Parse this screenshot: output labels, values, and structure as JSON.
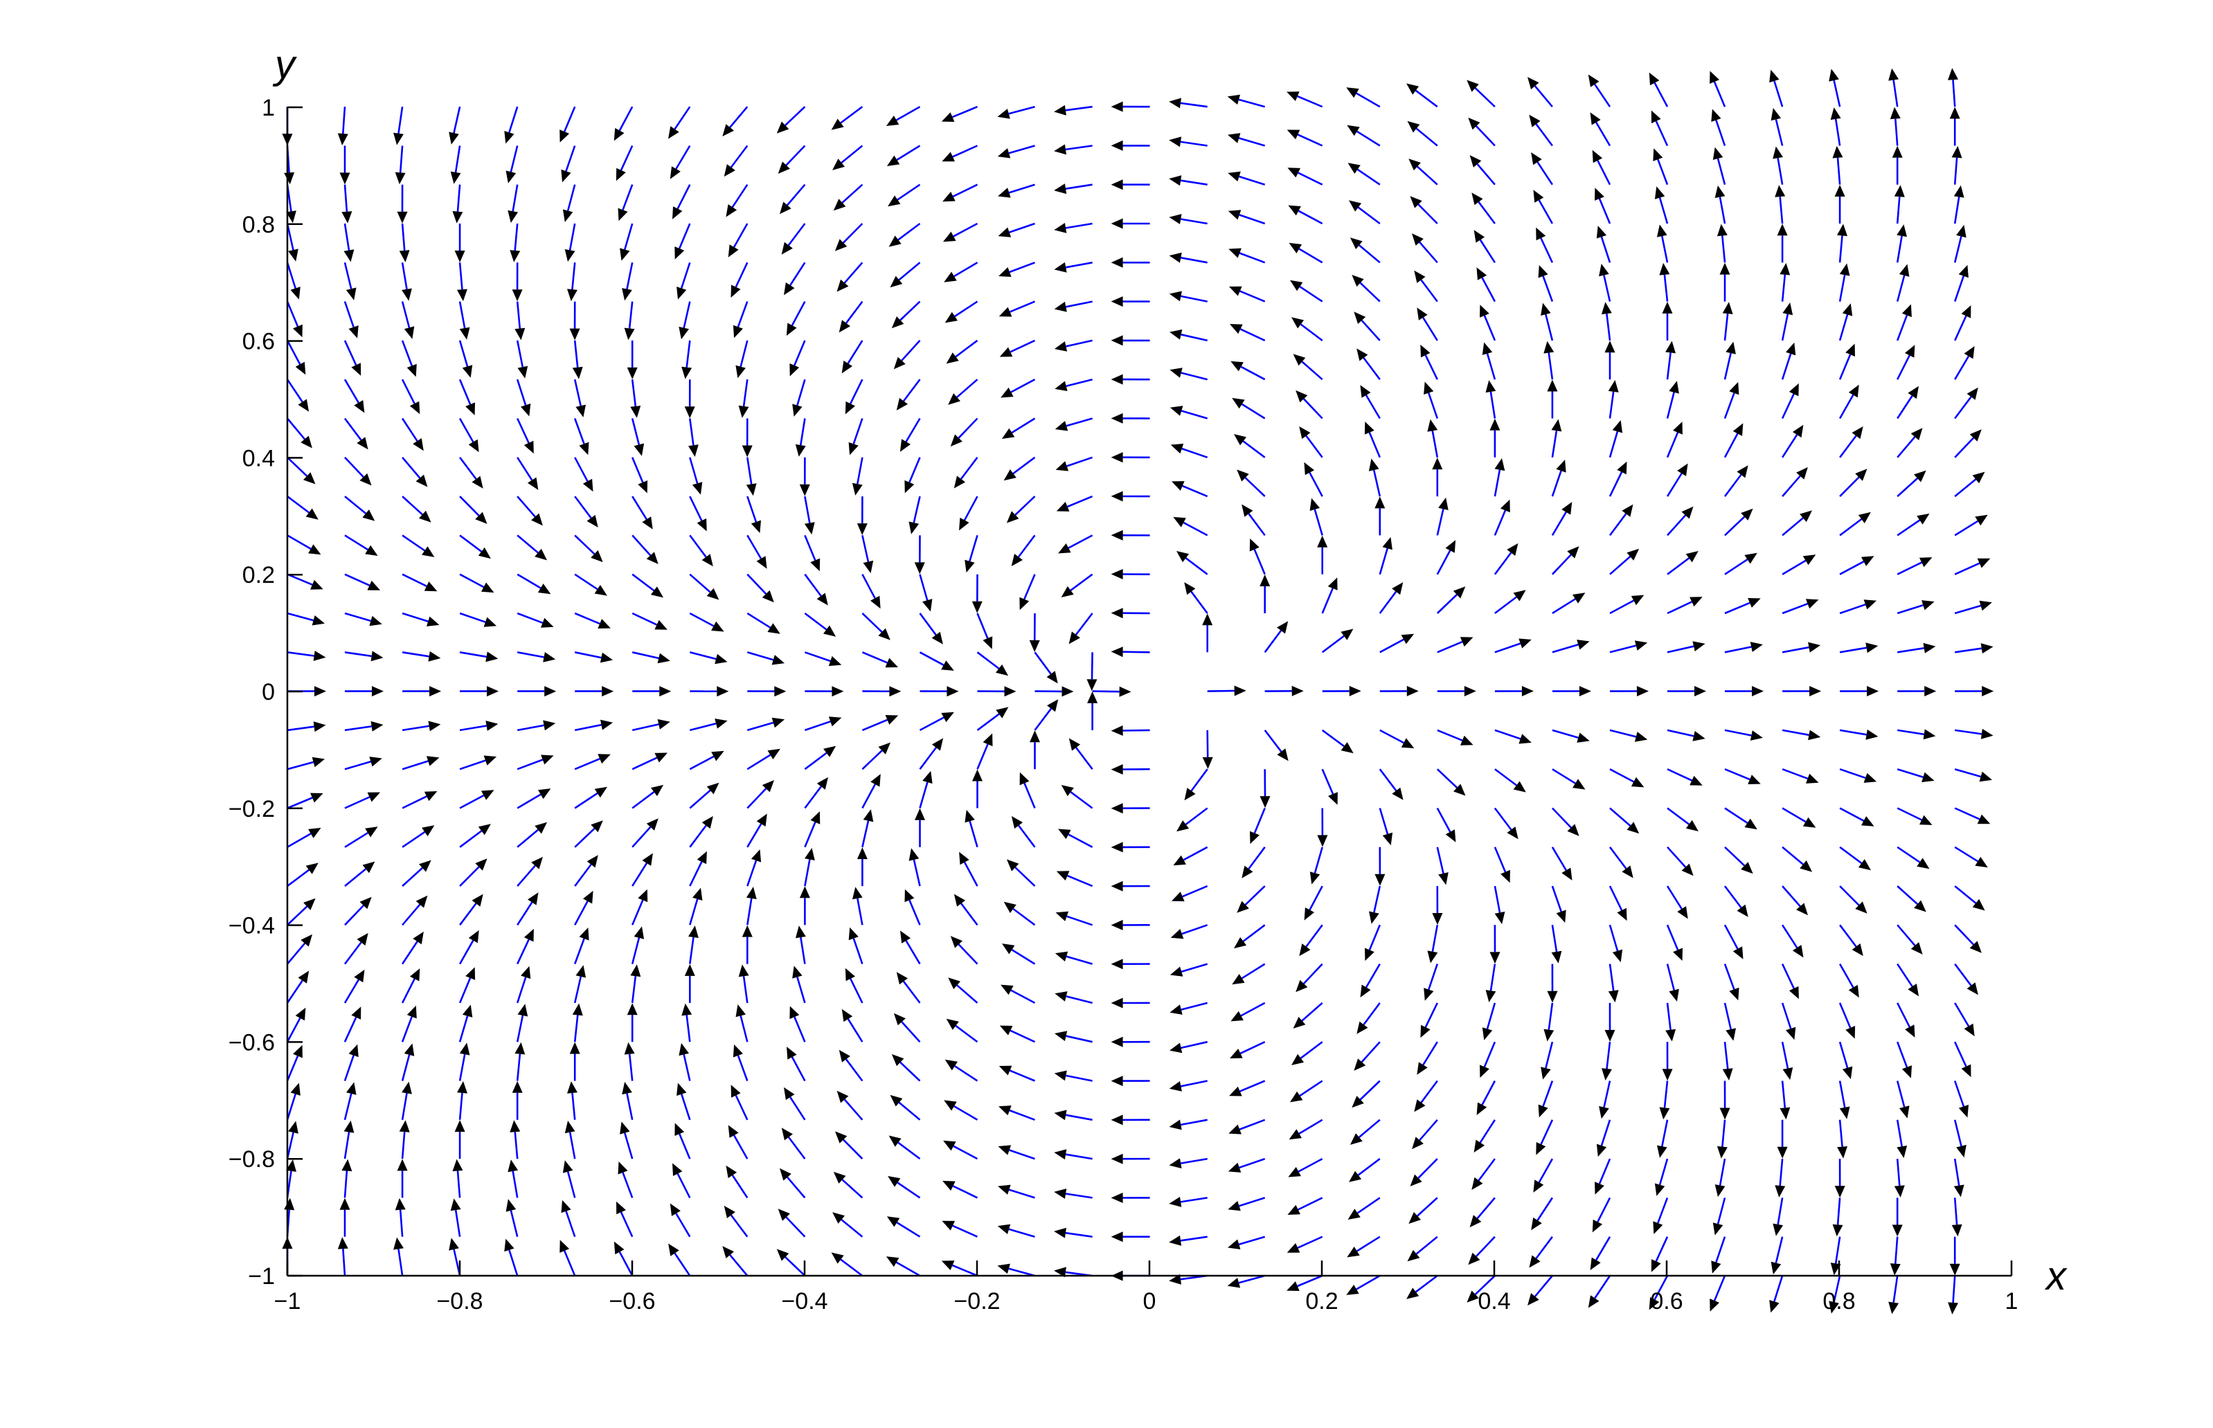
{
  "chart_data": {
    "type": "quiver",
    "title": "",
    "xlabel": "x",
    "ylabel": "y",
    "xlim": [
      -1,
      1
    ],
    "ylim": [
      -1,
      1
    ],
    "x_ticks": [
      -1,
      -0.8,
      -0.6,
      -0.4,
      -0.2,
      0,
      0.2,
      0.4,
      0.6,
      0.8,
      1
    ],
    "y_ticks": [
      -1,
      -0.8,
      -0.6,
      -0.4,
      -0.2,
      0,
      0.2,
      0.4,
      0.6,
      0.8,
      1
    ],
    "x_tick_labels": [
      "−1",
      "−0.8",
      "−0.6",
      "−0.4",
      "−0.2",
      "0",
      "0.2",
      "0.4",
      "0.6",
      "0.8",
      "1"
    ],
    "y_tick_labels": [
      "−1",
      "−0.8",
      "−0.6",
      "−0.4",
      "−0.2",
      "0",
      "0.2",
      "0.4",
      "0.6",
      "0.8",
      "1"
    ],
    "grid": false,
    "legend": "none",
    "grid_points": {
      "x_start": -1.0,
      "x_step": 0.0667,
      "x_count": 30,
      "y_start": -1.0,
      "y_step": 0.0667,
      "y_count": 31
    },
    "vector_field": "unit direction of (x, y) rotated by atan2(y, x)",
    "shaft_color": "#0000ff",
    "head_color": "#000000",
    "axis_color": "#000000"
  }
}
